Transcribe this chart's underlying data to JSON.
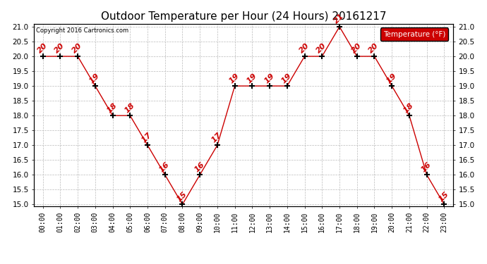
{
  "title": "Outdoor Temperature per Hour (24 Hours) 20161217",
  "copyright": "Copyright 2016 Cartronics.com",
  "hours": [
    "00:00",
    "01:00",
    "02:00",
    "03:00",
    "04:00",
    "05:00",
    "06:00",
    "07:00",
    "08:00",
    "09:00",
    "10:00",
    "11:00",
    "12:00",
    "13:00",
    "14:00",
    "15:00",
    "16:00",
    "17:00",
    "18:00",
    "19:00",
    "20:00",
    "21:00",
    "22:00",
    "23:00"
  ],
  "temperatures": [
    20,
    20,
    20,
    19,
    18,
    18,
    17,
    16,
    15,
    16,
    17,
    19,
    19,
    19,
    19,
    20,
    20,
    21,
    20,
    20,
    19,
    18,
    16,
    15
  ],
  "ylim_min": 15.0,
  "ylim_max": 21.0,
  "line_color": "#cc0000",
  "marker_color": "#000000",
  "label_color": "#cc0000",
  "bg_color": "#ffffff",
  "grid_color": "#bbbbbb",
  "title_fontsize": 11,
  "legend_label": "Temperature (°F)",
  "legend_bg": "#cc0000",
  "legend_text_color": "#ffffff"
}
